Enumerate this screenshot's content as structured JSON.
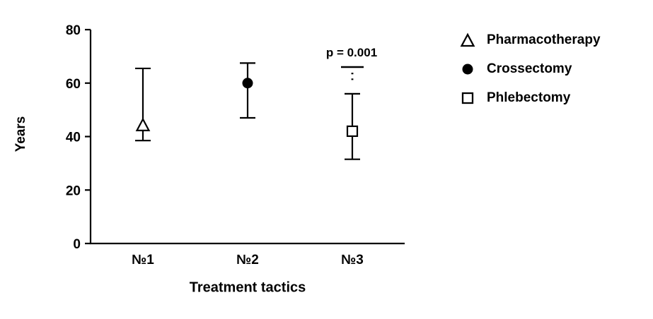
{
  "chart_data": {
    "type": "scatter",
    "title": "",
    "xlabel": "Treatment tactics",
    "ylabel": "Years",
    "ylim": [
      0,
      80
    ],
    "yticks": [
      0,
      20,
      40,
      60,
      80
    ],
    "categories": [
      "№1",
      "№2",
      "№3"
    ],
    "grid": false,
    "legend_position": "right",
    "series": [
      {
        "name": "Pharmacotherapy",
        "marker": "triangle-open",
        "category": "№1",
        "value": 44,
        "whisker_low": 38.5,
        "whisker_high": 65.5
      },
      {
        "name": "Crossectomy",
        "marker": "circle-filled",
        "category": "№2",
        "value": 60,
        "whisker_low": 47,
        "whisker_high": 67.5
      },
      {
        "name": "Phlebectomy",
        "marker": "square-open",
        "category": "№3",
        "value": 42,
        "whisker_low": 31.5,
        "whisker_high": 56
      }
    ],
    "annotation": {
      "text": "p = 0.001",
      "category": "№3",
      "line_y": 66,
      "dotted_to": 60
    },
    "legend": [
      {
        "label": "Pharmacotherapy",
        "marker": "triangle-open"
      },
      {
        "label": "Crossectomy",
        "marker": "circle-filled"
      },
      {
        "label": "Phlebectomy",
        "marker": "square-open"
      }
    ],
    "colors": {
      "stroke": "#000000",
      "background": "#ffffff"
    }
  }
}
